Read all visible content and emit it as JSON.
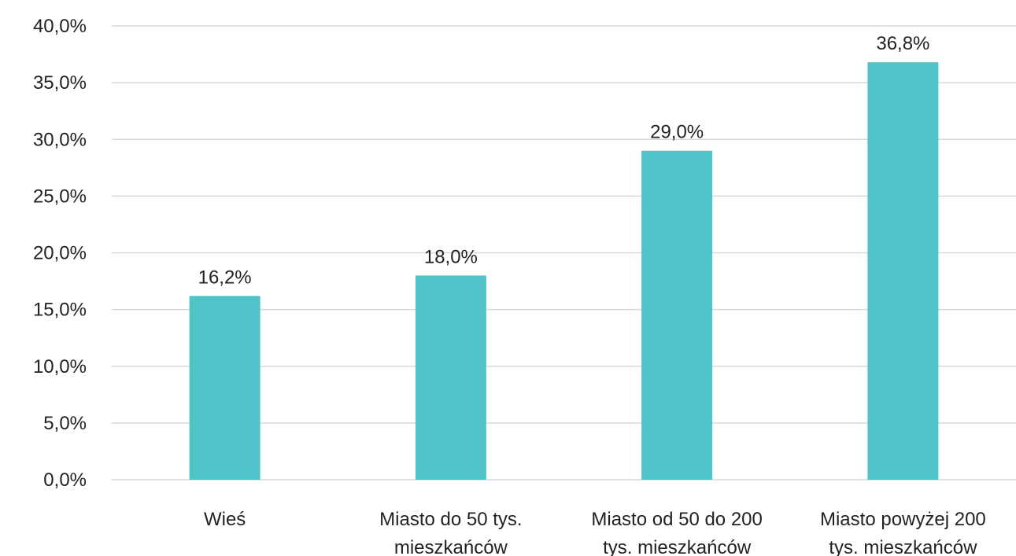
{
  "chart_data": {
    "type": "bar",
    "title": "",
    "xlabel": "",
    "ylabel": "",
    "categories": [
      "Wieś",
      "Miasto do 50 tys. mieszkańców",
      "Miasto od 50 do 200 tys. mieszkańców",
      "Miasto powyżej 200 tys. mieszkańców"
    ],
    "category_label_lines": [
      [
        "Wieś"
      ],
      [
        "Miasto do 50 tys.",
        "mieszkańców"
      ],
      [
        "Miasto od 50 do 200",
        "tys. mieszkańców"
      ],
      [
        "Miasto powyżej 200",
        "tys. mieszkańców"
      ]
    ],
    "values": [
      16.2,
      18.0,
      29.0,
      36.8
    ],
    "data_labels": [
      "16,2%",
      "18,0%",
      "29,0%",
      "36,8%"
    ],
    "ylim": [
      0,
      40
    ],
    "y_ticks": [
      0,
      5,
      10,
      15,
      20,
      25,
      30,
      35,
      40
    ],
    "y_tick_labels": [
      "0,0%",
      "5,0%",
      "10,0%",
      "15,0%",
      "20,0%",
      "25,0%",
      "30,0%",
      "35,0%",
      "40,0%"
    ],
    "grid": true,
    "legend": "none",
    "bar_color": "#50C3C9"
  }
}
